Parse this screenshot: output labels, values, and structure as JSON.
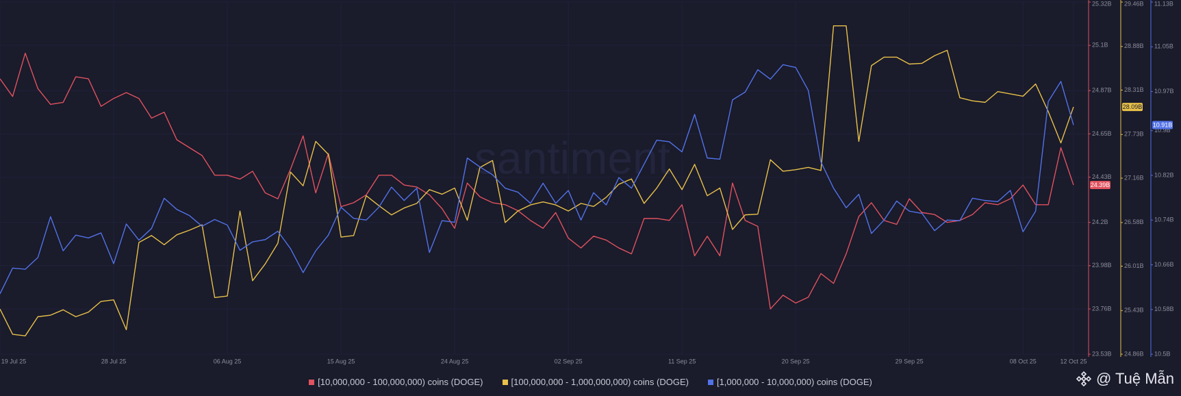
{
  "chart_data": {
    "type": "line",
    "watermark": "santiment",
    "credit": "@ Tuệ Mẫn",
    "grid": true,
    "x": [
      "2025-07-19",
      "2025-07-20",
      "2025-07-21",
      "2025-07-22",
      "2025-07-23",
      "2025-07-24",
      "2025-07-25",
      "2025-07-26",
      "2025-07-27",
      "2025-07-28",
      "2025-07-29",
      "2025-07-30",
      "2025-07-31",
      "2025-08-01",
      "2025-08-02",
      "2025-08-03",
      "2025-08-04",
      "2025-08-05",
      "2025-08-06",
      "2025-08-07",
      "2025-08-08",
      "2025-08-09",
      "2025-08-10",
      "2025-08-11",
      "2025-08-12",
      "2025-08-13",
      "2025-08-14",
      "2025-08-15",
      "2025-08-16",
      "2025-08-17",
      "2025-08-18",
      "2025-08-19",
      "2025-08-20",
      "2025-08-21",
      "2025-08-22",
      "2025-08-23",
      "2025-08-24",
      "2025-08-25",
      "2025-08-26",
      "2025-08-27",
      "2025-08-28",
      "2025-08-29",
      "2025-08-30",
      "2025-08-31",
      "2025-09-01",
      "2025-09-02",
      "2025-09-03",
      "2025-09-04",
      "2025-09-05",
      "2025-09-06",
      "2025-09-07",
      "2025-09-08",
      "2025-09-09",
      "2025-09-10",
      "2025-09-11",
      "2025-09-12",
      "2025-09-13",
      "2025-09-14",
      "2025-09-15",
      "2025-09-16",
      "2025-09-17",
      "2025-09-18",
      "2025-09-19",
      "2025-09-20",
      "2025-09-21",
      "2025-09-22",
      "2025-09-23",
      "2025-09-24",
      "2025-09-25",
      "2025-09-26",
      "2025-09-27",
      "2025-09-28",
      "2025-09-29",
      "2025-09-30",
      "2025-10-01",
      "2025-10-02",
      "2025-10-03",
      "2025-10-04",
      "2025-10-05",
      "2025-10-06",
      "2025-10-07",
      "2025-10-08",
      "2025-10-09",
      "2025-10-10",
      "2025-10-11",
      "2025-10-12"
    ],
    "xticks": [
      {
        "value": "2025-07-19",
        "label": "19 Jul 25"
      },
      {
        "value": "2025-07-28",
        "label": "28 Jul 25"
      },
      {
        "value": "2025-08-06",
        "label": "06 Aug 25"
      },
      {
        "value": "2025-08-15",
        "label": "15 Aug 25"
      },
      {
        "value": "2025-08-24",
        "label": "24 Aug 25"
      },
      {
        "value": "2025-09-02",
        "label": "02 Sep 25"
      },
      {
        "value": "2025-09-11",
        "label": "11 Sep 25"
      },
      {
        "value": "2025-09-20",
        "label": "20 Sep 25"
      },
      {
        "value": "2025-09-29",
        "label": "29 Sep 25"
      },
      {
        "value": "2025-10-08",
        "label": "08 Oct 25"
      },
      {
        "value": "2025-10-12",
        "label": "12 Oct 25"
      }
    ],
    "ylim": [
      23.53,
      25.32
    ],
    "yticks": [
      {
        "value": 25.32,
        "label": "25.32B"
      },
      {
        "value": 25.1,
        "label": "25.1B"
      },
      {
        "value": 24.87,
        "label": "24.87B"
      },
      {
        "value": 24.65,
        "label": "24.65B"
      },
      {
        "value": 24.43,
        "label": "24.43B"
      },
      {
        "value": 24.2,
        "label": "24.2B"
      },
      {
        "value": 23.98,
        "label": "23.98B"
      },
      {
        "value": 23.76,
        "label": "23.76B"
      },
      {
        "value": 23.53,
        "label": "23.53B"
      }
    ],
    "y2lim": [
      24.86,
      29.46
    ],
    "y2ticks": [
      {
        "value": 29.46,
        "label": "29.46B"
      },
      {
        "value": 28.88,
        "label": "28.88B"
      },
      {
        "value": 28.31,
        "label": "28.31B"
      },
      {
        "value": 27.73,
        "label": "27.73B"
      },
      {
        "value": 27.16,
        "label": "27.16B"
      },
      {
        "value": 26.58,
        "label": "26.58B"
      },
      {
        "value": 26.01,
        "label": "26.01B"
      },
      {
        "value": 25.43,
        "label": "25.43B"
      },
      {
        "value": 24.86,
        "label": "24.86B"
      }
    ],
    "y3lim": [
      10.5,
      11.13
    ],
    "y3ticks": [
      {
        "value": 11.13,
        "label": "11.13B"
      },
      {
        "value": 11.05,
        "label": "11.05B"
      },
      {
        "value": 10.97,
        "label": "10.97B"
      },
      {
        "value": 10.9,
        "label": "10.9B"
      },
      {
        "value": 10.82,
        "label": "10.82B"
      },
      {
        "value": 10.74,
        "label": "10.74B"
      },
      {
        "value": 10.66,
        "label": "10.66B"
      },
      {
        "value": 10.58,
        "label": "10.58B"
      },
      {
        "value": 10.5,
        "label": "10.5B"
      }
    ],
    "series": [
      {
        "name": "[10,000,000 - 100,000,000) coins (DOGE)",
        "color": "#e0525f",
        "axis": "y",
        "last_value_label": "24.39B",
        "values": [
          24.93,
          24.84,
          25.06,
          24.88,
          24.8,
          24.81,
          24.94,
          24.93,
          24.79,
          24.83,
          24.86,
          24.83,
          24.73,
          24.76,
          24.62,
          24.58,
          24.54,
          24.44,
          24.44,
          24.42,
          24.46,
          24.35,
          24.32,
          24.47,
          24.64,
          24.35,
          24.55,
          24.28,
          24.3,
          24.34,
          24.44,
          24.44,
          24.39,
          24.38,
          24.34,
          24.27,
          24.17,
          24.4,
          24.33,
          24.3,
          24.29,
          24.26,
          24.21,
          24.17,
          24.25,
          24.12,
          24.07,
          24.13,
          24.11,
          24.07,
          24.04,
          24.22,
          24.22,
          24.21,
          24.29,
          24.03,
          24.13,
          24.03,
          24.4,
          24.21,
          24.18,
          23.76,
          23.83,
          23.79,
          23.82,
          23.94,
          23.89,
          24.04,
          24.23,
          24.3,
          24.21,
          24.19,
          24.32,
          24.25,
          24.24,
          24.2,
          24.21,
          24.24,
          24.3,
          24.29,
          24.32,
          24.39,
          24.29,
          24.29,
          24.58,
          24.39
        ]
      },
      {
        "name": "[100,000,000 - 1,000,000,000) coins (DOGE)",
        "color": "#e8c14a",
        "axis": "y2",
        "last_value_label": "28.09B",
        "values": [
          25.45,
          25.12,
          25.1,
          25.35,
          25.37,
          25.44,
          25.35,
          25.41,
          25.55,
          25.57,
          25.18,
          26.32,
          26.41,
          26.29,
          26.42,
          26.48,
          26.55,
          25.6,
          25.62,
          26.73,
          25.82,
          26.04,
          26.31,
          27.24,
          27.06,
          27.64,
          27.47,
          26.39,
          26.41,
          26.93,
          26.8,
          26.68,
          26.77,
          26.83,
          27.01,
          26.95,
          27.03,
          26.61,
          27.3,
          27.39,
          26.58,
          26.73,
          26.81,
          26.85,
          26.81,
          26.73,
          26.83,
          26.79,
          26.91,
          27.08,
          27.15,
          26.83,
          27.03,
          27.28,
          27.01,
          27.34,
          26.93,
          27.03,
          26.49,
          26.68,
          26.69,
          27.4,
          27.25,
          27.27,
          27.3,
          27.26,
          29.15,
          29.15,
          27.64,
          28.63,
          28.74,
          28.74,
          28.65,
          28.66,
          28.76,
          28.83,
          28.21,
          28.17,
          28.15,
          28.29,
          28.26,
          28.23,
          28.39,
          28.03,
          27.62,
          28.09
        ]
      },
      {
        "name": "[1,000,000 - 10,000,000) coins (DOGE)",
        "color": "#5272e8",
        "axis": "y3",
        "last_value_label": "10.91B",
        "values": [
          10.608,
          10.654,
          10.652,
          10.673,
          10.746,
          10.685,
          10.713,
          10.708,
          10.717,
          10.662,
          10.733,
          10.704,
          10.725,
          10.779,
          10.759,
          10.748,
          10.729,
          10.741,
          10.731,
          10.686,
          10.701,
          10.705,
          10.72,
          10.689,
          10.646,
          10.685,
          10.713,
          10.763,
          10.743,
          10.74,
          10.763,
          10.799,
          10.775,
          10.797,
          10.682,
          10.739,
          10.736,
          10.851,
          10.835,
          10.821,
          10.797,
          10.79,
          10.77,
          10.806,
          10.77,
          10.793,
          10.74,
          10.789,
          10.767,
          10.816,
          10.797,
          10.84,
          10.883,
          10.88,
          10.862,
          10.929,
          10.851,
          10.849,
          10.955,
          10.969,
          11.009,
          10.992,
          11.018,
          11.013,
          10.972,
          10.844,
          10.797,
          10.762,
          10.786,
          10.716,
          10.74,
          10.774,
          10.756,
          10.752,
          10.721,
          10.74,
          10.739,
          10.779,
          10.775,
          10.773,
          10.793,
          10.719,
          10.756,
          10.952,
          10.988,
          10.91
        ]
      }
    ]
  }
}
